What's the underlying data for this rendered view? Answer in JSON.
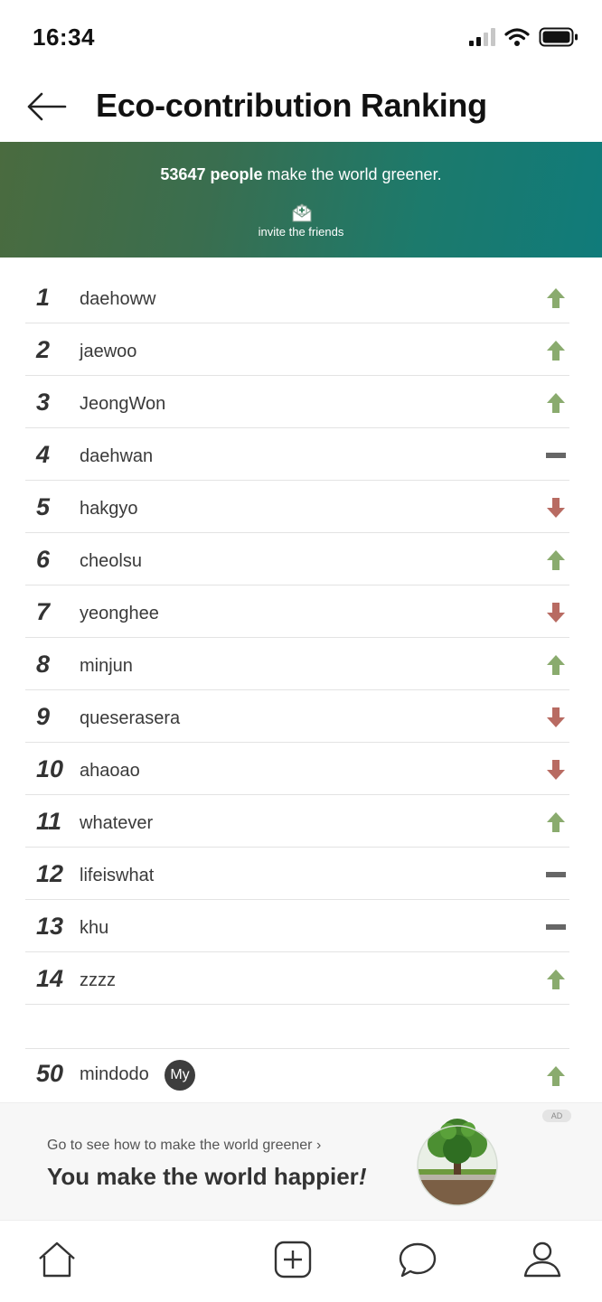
{
  "status_bar": {
    "time": "16:34"
  },
  "header": {
    "title": "Eco-contribution Ranking"
  },
  "banner": {
    "count": "53647 people",
    "message": " make the world greener.",
    "invite_label": "invite the friends"
  },
  "ranking": [
    {
      "rank": "1",
      "name": "daehoww",
      "trend": "up"
    },
    {
      "rank": "2",
      "name": "jaewoo",
      "trend": "up"
    },
    {
      "rank": "3",
      "name": "JeongWon",
      "trend": "up"
    },
    {
      "rank": "4",
      "name": "daehwan",
      "trend": "same"
    },
    {
      "rank": "5",
      "name": "hakgyo",
      "trend": "down"
    },
    {
      "rank": "6",
      "name": "cheolsu",
      "trend": "up"
    },
    {
      "rank": "7",
      "name": "yeonghee",
      "trend": "down"
    },
    {
      "rank": "8",
      "name": "minjun",
      "trend": "up"
    },
    {
      "rank": "9",
      "name": "queserasera",
      "trend": "down"
    },
    {
      "rank": "10",
      "name": "ahaoao",
      "trend": "down"
    },
    {
      "rank": "11",
      "name": "whatever",
      "trend": "up"
    },
    {
      "rank": "12",
      "name": "lifeiswhat",
      "trend": "same"
    },
    {
      "rank": "13",
      "name": "khu",
      "trend": "same"
    },
    {
      "rank": "14",
      "name": "zzzz",
      "trend": "up"
    }
  ],
  "my_rank": {
    "rank": "50",
    "name": "mindodo",
    "badge": "My",
    "trend": "up"
  },
  "ad": {
    "tag": "AD",
    "subtitle": "Go to see how to make the world greener ›",
    "headline": "You make the world happier",
    "headline_mark": "!"
  },
  "colors": {
    "up": "#8aab6e",
    "down": "#b86b62",
    "same": "#666666",
    "banner_start": "#4a6b3f",
    "banner_end": "#107b7a"
  },
  "nav": {
    "icons": [
      "home-icon",
      "add-icon",
      "chat-icon",
      "profile-icon"
    ]
  }
}
